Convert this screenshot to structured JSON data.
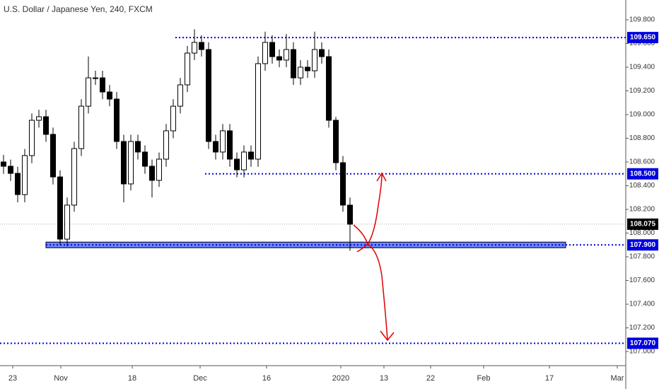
{
  "chart_data": {
    "type": "candlestick",
    "title": "U.S. Dollar / Japanese Yen, 240, FXCM",
    "up_color": "#ffffff",
    "down_color": "#000000",
    "level_color": "#0000e0",
    "xlim": [
      -0.5,
      88
    ],
    "ylim": [
      106.893,
      109.967
    ],
    "x": [
      0,
      1,
      2,
      3,
      4,
      5,
      6,
      7,
      8,
      9,
      10,
      11,
      12,
      13,
      14,
      15,
      16,
      17,
      18,
      19,
      20,
      21,
      22,
      23,
      24,
      25,
      26,
      27,
      28,
      29,
      30,
      31,
      32,
      33,
      34,
      35,
      36,
      37,
      38,
      39,
      40,
      41,
      42,
      43,
      44,
      45,
      46,
      47,
      48,
      49
    ],
    "open": [
      108.6,
      108.564,
      108.504,
      108.325,
      108.654,
      108.952,
      108.982,
      108.833,
      108.474,
      107.949,
      108.236,
      108.713,
      109.071,
      109.31,
      109.31,
      109.191,
      109.131,
      108.773,
      108.415,
      108.773,
      108.684,
      108.564,
      108.445,
      108.624,
      108.863,
      109.071,
      109.251,
      109.519,
      109.609,
      109.549,
      108.773,
      108.684,
      108.863,
      108.624,
      108.534,
      108.684,
      108.624,
      109.43,
      109.609,
      109.489,
      109.46,
      109.549,
      109.31,
      109.4,
      109.37,
      109.549,
      109.489,
      108.952,
      108.594,
      108.236
    ],
    "high": [
      108.66,
      108.62,
      108.56,
      108.71,
      109.01,
      109.04,
      109.04,
      108.89,
      108.53,
      108.3,
      108.77,
      109.13,
      109.49,
      109.37,
      109.37,
      109.25,
      109.19,
      108.83,
      108.83,
      108.83,
      108.74,
      108.62,
      108.68,
      108.92,
      109.13,
      109.31,
      109.58,
      109.72,
      109.67,
      109.61,
      108.83,
      108.92,
      108.92,
      108.68,
      108.74,
      108.74,
      109.49,
      109.7,
      109.67,
      109.55,
      109.68,
      109.61,
      109.46,
      109.46,
      109.7,
      109.61,
      109.55,
      108.98,
      108.65,
      108.3
    ],
    "low": [
      108.5,
      108.44,
      108.26,
      108.26,
      108.59,
      108.89,
      108.77,
      108.41,
      107.9,
      107.89,
      108.18,
      108.65,
      109.01,
      109.25,
      109.13,
      109.07,
      108.71,
      108.26,
      108.36,
      108.62,
      108.5,
      108.3,
      108.39,
      108.56,
      108.8,
      109.01,
      109.19,
      109.46,
      109.49,
      108.71,
      108.62,
      108.62,
      108.56,
      108.47,
      108.47,
      108.56,
      108.56,
      109.37,
      109.43,
      109.4,
      109.4,
      109.25,
      109.25,
      109.31,
      109.31,
      109.43,
      108.89,
      108.53,
      108.18,
      107.85
    ],
    "close": [
      108.564,
      108.504,
      108.325,
      108.654,
      108.952,
      108.982,
      108.833,
      108.474,
      107.949,
      108.236,
      108.713,
      109.071,
      109.31,
      109.31,
      109.191,
      109.131,
      108.773,
      108.415,
      108.773,
      108.684,
      108.564,
      108.445,
      108.624,
      108.863,
      109.071,
      109.251,
      109.519,
      109.609,
      109.549,
      108.773,
      108.684,
      108.863,
      108.624,
      108.534,
      108.684,
      108.624,
      109.43,
      109.609,
      109.489,
      109.46,
      109.549,
      109.31,
      109.4,
      109.37,
      109.549,
      109.489,
      108.952,
      108.594,
      108.236,
      108.075
    ],
    "xticks": [
      {
        "value": 1.3,
        "label": "23"
      },
      {
        "value": 8.1,
        "label": "Nov"
      },
      {
        "value": 18.2,
        "label": "18"
      },
      {
        "value": 27.8,
        "label": "Dec"
      },
      {
        "value": 37.2,
        "label": "16"
      },
      {
        "value": 47.7,
        "label": "2020"
      },
      {
        "value": 53.8,
        "label": "13"
      },
      {
        "value": 60.4,
        "label": "22"
      },
      {
        "value": 67.9,
        "label": "Feb"
      },
      {
        "value": 77.2,
        "label": "17"
      },
      {
        "value": 86.8,
        "label": "Mar"
      }
    ],
    "yticks": [
      {
        "value": 107,
        "label": "107.000"
      },
      {
        "value": 107.2,
        "label": "107.200"
      },
      {
        "value": 107.4,
        "label": "107.400"
      },
      {
        "value": 107.6,
        "label": "107.600"
      },
      {
        "value": 107.8,
        "label": "107.800"
      },
      {
        "value": 108,
        "label": "108.000"
      },
      {
        "value": 108.2,
        "label": "108.200"
      },
      {
        "value": 108.4,
        "label": "108.400"
      },
      {
        "value": 108.6,
        "label": "108.600"
      },
      {
        "value": 108.8,
        "label": "108.800"
      },
      {
        "value": 109,
        "label": "109.000"
      },
      {
        "value": 109.2,
        "label": "109.200"
      },
      {
        "value": 109.4,
        "label": "109.400"
      },
      {
        "value": 109.6,
        "label": "109.600"
      },
      {
        "value": 109.8,
        "label": "109.800"
      }
    ],
    "levels": [
      {
        "value": 109.65,
        "label": "109.650",
        "from": 24.3
      },
      {
        "value": 108.5,
        "label": "108.500",
        "from": 28.5
      },
      {
        "value": 107.9,
        "label": "107.900",
        "from": 6,
        "zone_to": 79.5
      },
      {
        "value": 107.07,
        "label": "107.070",
        "from": -0.5
      }
    ],
    "last_price": 108.075
  }
}
